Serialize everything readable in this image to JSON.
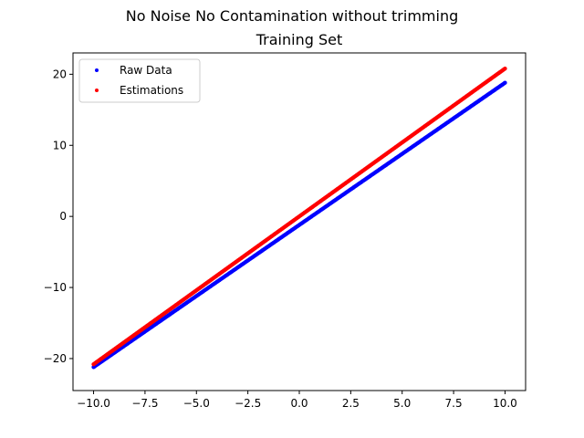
{
  "figure": {
    "suptitle": "No Noise No Contamination without trimming"
  },
  "chart_data": {
    "type": "scatter",
    "title": "Training Set",
    "xlabel": "",
    "ylabel": "",
    "xlim": [
      -11.0,
      11.0
    ],
    "ylim": [
      -24.5,
      23.0
    ],
    "xticks": [
      -10.0,
      -7.5,
      -5.0,
      -2.5,
      0.0,
      2.5,
      5.0,
      7.5,
      10.0
    ],
    "xtick_labels": [
      "−10.0",
      "−7.5",
      "−5.0",
      "−2.5",
      "0.0",
      "2.5",
      "5.0",
      "7.5",
      "10.0"
    ],
    "yticks": [
      -20,
      -10,
      0,
      10,
      20
    ],
    "ytick_labels": [
      "−20",
      "−10",
      "0",
      "10",
      "20"
    ],
    "grid": false,
    "legend": {
      "position": "top-left",
      "entries": [
        "Raw Data",
        "Estimations"
      ]
    },
    "series": [
      {
        "name": "Raw Data",
        "color": "#0000ff",
        "x_range": [
          -10.0,
          10.0
        ],
        "slope": 2.0,
        "intercept": -1.2,
        "n_points": 400
      },
      {
        "name": "Estimations",
        "color": "#ff0000",
        "x_range": [
          -10.0,
          10.0
        ],
        "slope": 2.08,
        "intercept": 0.0,
        "n_points": 400
      }
    ]
  }
}
